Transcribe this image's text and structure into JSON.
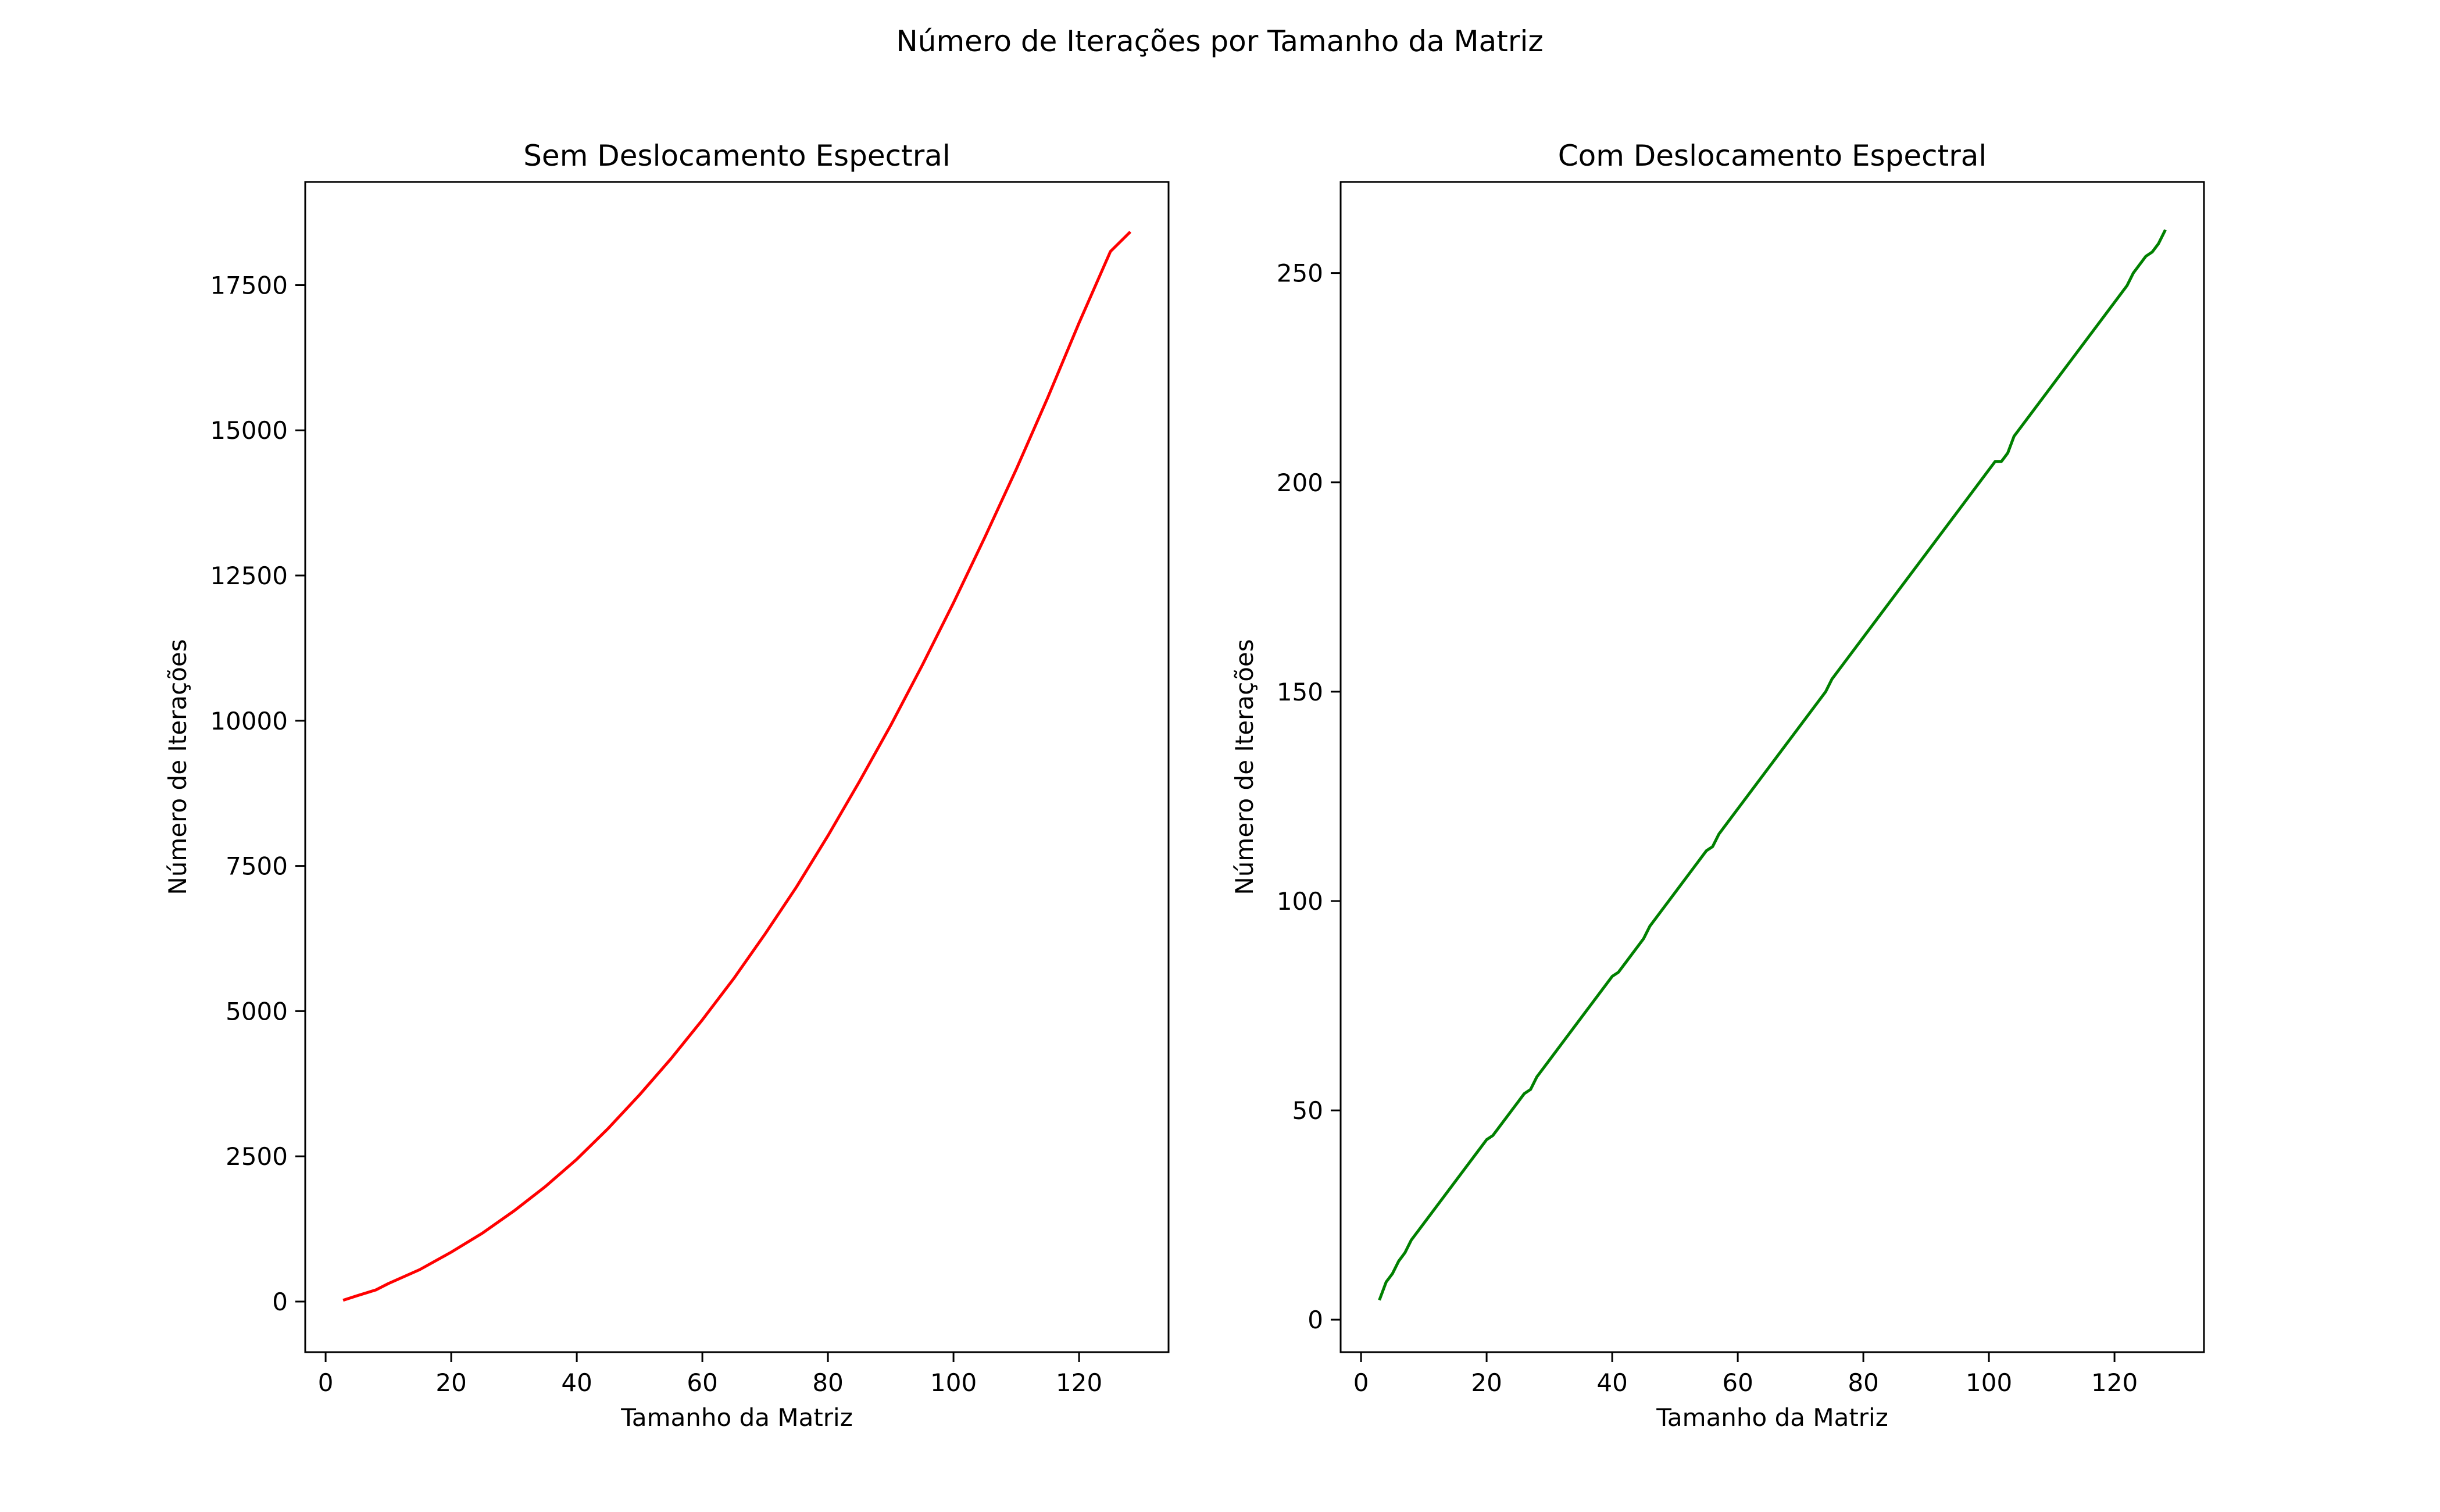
{
  "figure": {
    "suptitle": "Número de Iterações por Tamanho da Matriz"
  },
  "chart_data": [
    {
      "type": "line",
      "title": "Sem Deslocamento Espectral",
      "xlabel": "Tamanho da Matriz",
      "ylabel": "Número de Iterações",
      "xlim": [
        -3.25,
        134.25
      ],
      "ylim": [
        -871,
        19276
      ],
      "xticks": [
        0,
        20,
        40,
        60,
        80,
        100,
        120
      ],
      "yticks": [
        0,
        2500,
        5000,
        7500,
        10000,
        12500,
        15000,
        17500
      ],
      "color": "#ff0000",
      "grid": false,
      "series": [
        {
          "x": [
            3,
            5,
            8,
            10,
            15,
            20,
            25,
            30,
            35,
            40,
            45,
            50,
            55,
            60,
            65,
            70,
            75,
            80,
            85,
            90,
            95,
            100,
            105,
            110,
            115,
            120,
            125,
            128
          ],
          "y": [
            30,
            100,
            200,
            310,
            550,
            850,
            1180,
            1560,
            1980,
            2450,
            2980,
            3560,
            4180,
            4850,
            5560,
            6330,
            7140,
            8020,
            8950,
            9920,
            10950,
            12030,
            13160,
            14330,
            15560,
            16850,
            18080,
            18400
          ]
        }
      ]
    },
    {
      "type": "line",
      "title": "Com Deslocamento Espectral",
      "xlabel": "Tamanho da Matriz",
      "ylabel": "Número de Iterações",
      "xlim": [
        -3.25,
        134.25
      ],
      "ylim": [
        -7.75,
        271.75
      ],
      "xticks": [
        0,
        20,
        40,
        60,
        80,
        100,
        120
      ],
      "yticks": [
        0,
        50,
        100,
        150,
        200,
        250
      ],
      "color": "#008000",
      "grid": false,
      "series": [
        {
          "x": [
            3,
            4,
            5,
            6,
            7,
            8,
            10,
            15,
            20,
            21,
            25,
            26,
            27,
            28,
            30,
            35,
            40,
            41,
            45,
            46,
            50,
            55,
            56,
            57,
            60,
            65,
            70,
            74,
            75,
            80,
            85,
            90,
            95,
            100,
            101,
            102,
            103,
            104,
            105,
            110,
            115,
            120,
            122,
            123,
            125,
            126,
            127,
            128
          ],
          "y": [
            5,
            9,
            11,
            14,
            16,
            19,
            23,
            33,
            43,
            44,
            52,
            54,
            55,
            58,
            62,
            72,
            82,
            83,
            91,
            94,
            102,
            112,
            113,
            116,
            122,
            132,
            142,
            150,
            153,
            163,
            173,
            183,
            193,
            203,
            205,
            205,
            207,
            211,
            213,
            223,
            233,
            243,
            247,
            250,
            254,
            255,
            257,
            260
          ]
        }
      ]
    }
  ]
}
